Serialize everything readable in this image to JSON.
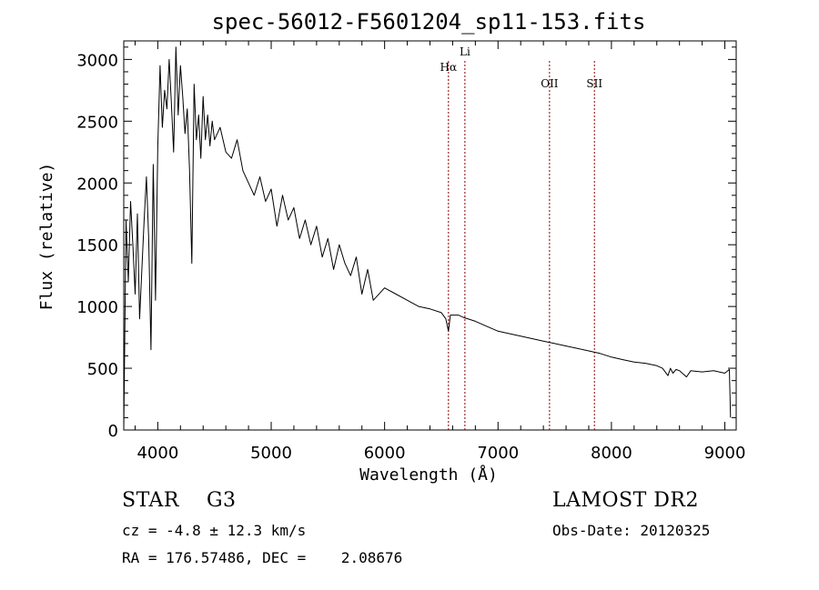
{
  "chart_data": {
    "type": "line",
    "title": "spec-56012-F5601204_sp11-153.fits",
    "xlabel": "Wavelength (Å)",
    "ylabel": "Flux (relative)",
    "xlim": [
      3700,
      9100
    ],
    "ylim": [
      0,
      3150
    ],
    "x_ticks": [
      4000,
      5000,
      6000,
      7000,
      8000,
      9000
    ],
    "y_ticks": [
      0,
      500,
      1000,
      1500,
      2000,
      2500,
      3000
    ],
    "grid": false,
    "series": [
      {
        "x": [
          3700,
          3720,
          3740,
          3760,
          3780,
          3800,
          3820,
          3840,
          3860,
          3880,
          3900,
          3920,
          3940,
          3960,
          3980,
          4000,
          4020,
          4040,
          4060,
          4080,
          4100,
          4120,
          4140,
          4160,
          4180,
          4200,
          4220,
          4240,
          4260,
          4280,
          4300,
          4320,
          4340,
          4360,
          4380,
          4400,
          4420,
          4440,
          4460,
          4480,
          4500,
          4550,
          4600,
          4650,
          4700,
          4750,
          4800,
          4850,
          4900,
          4950,
          5000,
          5050,
          5100,
          5150,
          5200,
          5250,
          5300,
          5350,
          5400,
          5450,
          5500,
          5550,
          5600,
          5650,
          5700,
          5750,
          5800,
          5850,
          5900,
          6000,
          6100,
          6200,
          6300,
          6400,
          6500,
          6540,
          6563,
          6580,
          6650,
          6700,
          6800,
          6900,
          7000,
          7100,
          7200,
          7300,
          7400,
          7500,
          7600,
          7700,
          7800,
          7900,
          8000,
          8100,
          8200,
          8300,
          8400,
          8450,
          8498,
          8520,
          8542,
          8570,
          8600,
          8662,
          8700,
          8800,
          8900,
          9000,
          9040,
          9050
        ],
        "y": [
          0,
          1700,
          1200,
          1850,
          1500,
          1100,
          1750,
          900,
          1300,
          1700,
          2050,
          1550,
          650,
          2150,
          1050,
          2300,
          2950,
          2450,
          2750,
          2600,
          3000,
          2650,
          2250,
          3100,
          2550,
          2950,
          2700,
          2400,
          2600,
          2100,
          1350,
          2800,
          2350,
          2550,
          2200,
          2700,
          2350,
          2550,
          2300,
          2500,
          2350,
          2450,
          2250,
          2200,
          2350,
          2100,
          2000,
          1900,
          2050,
          1850,
          1950,
          1650,
          1900,
          1700,
          1800,
          1550,
          1700,
          1500,
          1650,
          1400,
          1550,
          1300,
          1500,
          1350,
          1250,
          1400,
          1100,
          1300,
          1050,
          1150,
          1100,
          1050,
          1000,
          980,
          950,
          900,
          800,
          930,
          930,
          910,
          880,
          840,
          800,
          780,
          760,
          740,
          720,
          700,
          680,
          660,
          640,
          620,
          590,
          570,
          550,
          540,
          520,
          500,
          440,
          500,
          460,
          490,
          480,
          430,
          480,
          470,
          480,
          460,
          490,
          100
        ]
      }
    ],
    "lines": [
      {
        "name": "Hα",
        "wavelength": 6563
      },
      {
        "name": "Li",
        "wavelength": 6708
      },
      {
        "name": "OII",
        "wavelength": 7454
      },
      {
        "name": "SII",
        "wavelength": 7850
      }
    ]
  },
  "info": {
    "class": "STAR    G3",
    "survey": "LAMOST DR2",
    "cz": "cz = -4.8 ± 12.3 km/s",
    "obs_date": "Obs-Date: 20120325",
    "radec": "RA = 176.57486, DEC =    2.08676"
  },
  "colors": {
    "spectrum": "#000000",
    "line_markers": "#8b0000"
  }
}
